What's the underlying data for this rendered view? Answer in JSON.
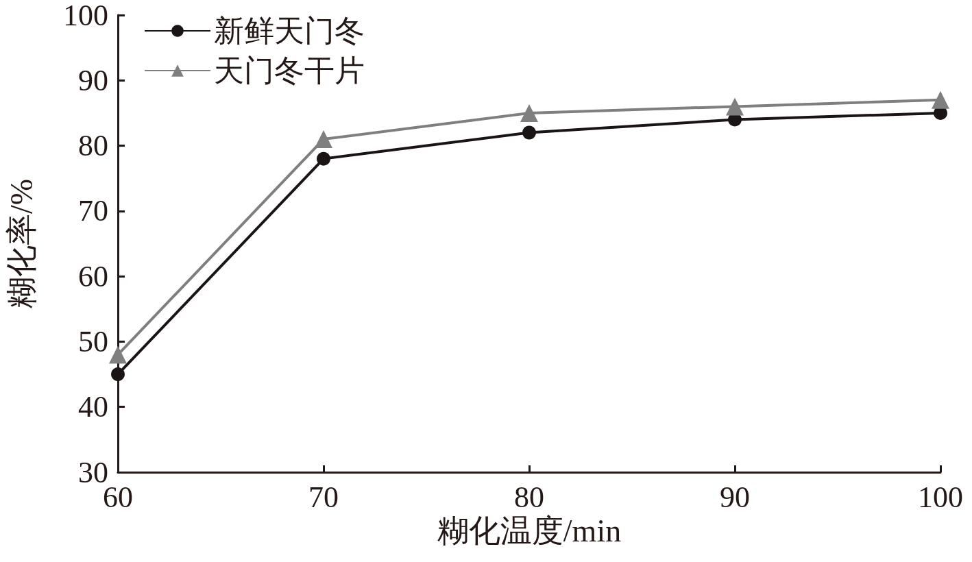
{
  "chart_data": {
    "type": "line",
    "xlabel": "糊化温度/min",
    "ylabel": "糊化率/%",
    "x": [
      60,
      70,
      80,
      90,
      100
    ],
    "series": [
      {
        "name": "新鲜天门冬",
        "color": "#1a1414",
        "marker": "circle",
        "values": [
          45,
          78,
          82,
          84,
          85
        ]
      },
      {
        "name": "天门冬干片",
        "color": "#7f7f7f",
        "marker": "triangle",
        "values": [
          48,
          81,
          85,
          86,
          87
        ]
      }
    ],
    "xlim": [
      60,
      100
    ],
    "xticks": [
      60,
      70,
      80,
      90,
      100
    ],
    "ylim": [
      30,
      100
    ],
    "yticks": [
      30,
      40,
      50,
      60,
      70,
      80,
      90,
      100
    ],
    "grid": false,
    "legend": "top left",
    "line_style": "solid"
  }
}
